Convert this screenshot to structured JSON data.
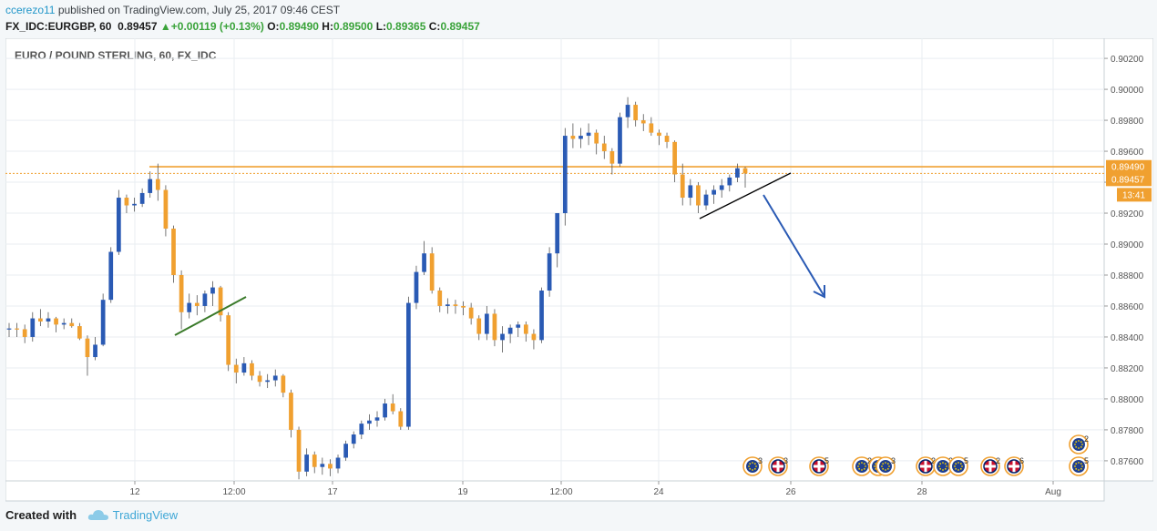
{
  "header": {
    "user": "ccerezo11",
    "published": "published on TradingView.com, July 25, 2017 09:46 CEST",
    "symbol_interval": "FX_IDC:EURGBP, 60",
    "last": "0.89457",
    "change": "+0.00119 (+0.13%)",
    "o_label": "O:",
    "o_value": "0.89490",
    "h_label": "H:",
    "h_value": "0.89500",
    "l_label": "L:",
    "l_value": "0.89365",
    "c_label": "C:",
    "c_value": "0.89457"
  },
  "footer": {
    "created_with": "Created with",
    "brand": "TradingView"
  },
  "colors": {
    "up": "#2a5ab4",
    "down": "#f0a030",
    "price_line": "#f0a030",
    "trend_green": "#3a7a2a",
    "arrow": "#2a5ab4",
    "axis": "#555555",
    "grid": "#e9eef2"
  },
  "chart_data": {
    "type": "candlestick",
    "title": "EURO / POUND STERLING, 60, FX_IDC",
    "ylim": [
      0.8747,
      0.9033
    ],
    "y_ticks": [
      "0.87600",
      "0.87800",
      "0.88000",
      "0.88200",
      "0.88400",
      "0.88600",
      "0.88800",
      "0.89000",
      "0.89200",
      "0.89400",
      "0.89600",
      "0.89800",
      "0.90000",
      "0.90200"
    ],
    "x_ticks": [
      "12",
      "12:00",
      "17",
      "19",
      "12:00",
      "24",
      "26",
      "28",
      "Aug"
    ],
    "price_labels": [
      {
        "value": 0.8949,
        "text": "0.89490",
        "color": "#f0a030"
      },
      {
        "value": 0.89457,
        "text": "0.89457",
        "color": "#f0a030"
      }
    ],
    "countdown": "13:41",
    "horizontal_line": 0.895,
    "event_labels": [
      "3",
      "3",
      "5",
      "2",
      "2",
      "3",
      "2",
      "2",
      "5",
      "2",
      "6",
      "5",
      "2"
    ],
    "series": [
      {
        "name": "EURGBP",
        "ohlc": [
          [
            0.88455,
            0.8849,
            0.884,
            0.88455
          ],
          [
            0.88455,
            0.8849,
            0.884,
            0.8845
          ],
          [
            0.8845,
            0.8848,
            0.8836,
            0.884
          ],
          [
            0.884,
            0.8856,
            0.8837,
            0.8852
          ],
          [
            0.8852,
            0.8858,
            0.8847,
            0.885
          ],
          [
            0.885,
            0.8856,
            0.8846,
            0.8852
          ],
          [
            0.8852,
            0.8853,
            0.8843,
            0.8848
          ],
          [
            0.8848,
            0.8852,
            0.8845,
            0.8849
          ],
          [
            0.8849,
            0.8852,
            0.8846,
            0.8847
          ],
          [
            0.8847,
            0.8849,
            0.8838,
            0.8839
          ],
          [
            0.8839,
            0.8841,
            0.8815,
            0.8827
          ],
          [
            0.8827,
            0.884,
            0.8825,
            0.8835
          ],
          [
            0.8835,
            0.8868,
            0.8834,
            0.8864
          ],
          [
            0.8864,
            0.8898,
            0.8862,
            0.8895
          ],
          [
            0.8895,
            0.8935,
            0.8893,
            0.893
          ],
          [
            0.893,
            0.8932,
            0.892,
            0.8925
          ],
          [
            0.8925,
            0.893,
            0.8921,
            0.8926
          ],
          [
            0.8926,
            0.8936,
            0.8924,
            0.8933
          ],
          [
            0.8933,
            0.8947,
            0.893,
            0.8942
          ],
          [
            0.8942,
            0.8952,
            0.8928,
            0.8935
          ],
          [
            0.8935,
            0.8938,
            0.8905,
            0.891
          ],
          [
            0.891,
            0.8912,
            0.8875,
            0.888
          ],
          [
            0.888,
            0.8883,
            0.8845,
            0.8856
          ],
          [
            0.8856,
            0.8868,
            0.8852,
            0.8862
          ],
          [
            0.8862,
            0.8867,
            0.8854,
            0.886
          ],
          [
            0.886,
            0.887,
            0.8856,
            0.8868
          ],
          [
            0.8868,
            0.8876,
            0.886,
            0.8872
          ],
          [
            0.8872,
            0.8873,
            0.885,
            0.8854
          ],
          [
            0.8854,
            0.8856,
            0.8818,
            0.8822
          ],
          [
            0.8822,
            0.8826,
            0.881,
            0.8817
          ],
          [
            0.8817,
            0.8827,
            0.8815,
            0.8823
          ],
          [
            0.8823,
            0.8825,
            0.8812,
            0.8815
          ],
          [
            0.8815,
            0.8818,
            0.8808,
            0.8811
          ],
          [
            0.8811,
            0.8816,
            0.8807,
            0.8812
          ],
          [
            0.8812,
            0.8819,
            0.8808,
            0.8815
          ],
          [
            0.8815,
            0.8816,
            0.8801,
            0.8804
          ],
          [
            0.8804,
            0.8806,
            0.8775,
            0.878
          ],
          [
            0.878,
            0.8782,
            0.8748,
            0.8753
          ],
          [
            0.8753,
            0.8768,
            0.875,
            0.8764
          ],
          [
            0.8764,
            0.8766,
            0.8752,
            0.8756
          ],
          [
            0.8756,
            0.8762,
            0.8751,
            0.8758
          ],
          [
            0.8758,
            0.8761,
            0.875,
            0.8755
          ],
          [
            0.8755,
            0.8764,
            0.8752,
            0.8762
          ],
          [
            0.8762,
            0.8773,
            0.876,
            0.8771
          ],
          [
            0.8771,
            0.8779,
            0.8768,
            0.8777
          ],
          [
            0.8777,
            0.8786,
            0.8774,
            0.8784
          ],
          [
            0.8784,
            0.879,
            0.878,
            0.8786
          ],
          [
            0.8786,
            0.8792,
            0.8782,
            0.8788
          ],
          [
            0.8788,
            0.88,
            0.8786,
            0.8797
          ],
          [
            0.8797,
            0.8803,
            0.879,
            0.8792
          ],
          [
            0.8792,
            0.8794,
            0.878,
            0.8782
          ],
          [
            0.8782,
            0.8866,
            0.878,
            0.8862
          ],
          [
            0.8862,
            0.8886,
            0.8858,
            0.8882
          ],
          [
            0.8882,
            0.8902,
            0.888,
            0.8894
          ],
          [
            0.8894,
            0.8898,
            0.8868,
            0.887
          ],
          [
            0.887,
            0.8872,
            0.8856,
            0.886
          ],
          [
            0.886,
            0.8865,
            0.8855,
            0.8861
          ],
          [
            0.8861,
            0.8864,
            0.8855,
            0.886
          ],
          [
            0.886,
            0.8863,
            0.8854,
            0.8859
          ],
          [
            0.8859,
            0.8862,
            0.8848,
            0.8852
          ],
          [
            0.8852,
            0.8854,
            0.8838,
            0.8842
          ],
          [
            0.8842,
            0.886,
            0.8838,
            0.8855
          ],
          [
            0.8855,
            0.8858,
            0.8834,
            0.8838
          ],
          [
            0.8838,
            0.8847,
            0.883,
            0.8842
          ],
          [
            0.8842,
            0.8848,
            0.8836,
            0.8846
          ],
          [
            0.8846,
            0.885,
            0.884,
            0.8848
          ],
          [
            0.8848,
            0.885,
            0.8837,
            0.8842
          ],
          [
            0.8842,
            0.8845,
            0.8832,
            0.8838
          ],
          [
            0.8838,
            0.8872,
            0.8836,
            0.887
          ],
          [
            0.887,
            0.8898,
            0.8866,
            0.8894
          ],
          [
            0.8894,
            0.892,
            0.8885,
            0.892
          ],
          [
            0.892,
            0.8975,
            0.8912,
            0.897
          ],
          [
            0.897,
            0.8978,
            0.8962,
            0.8968
          ],
          [
            0.8968,
            0.8975,
            0.8962,
            0.897
          ],
          [
            0.897,
            0.8978,
            0.8964,
            0.8972
          ],
          [
            0.8972,
            0.8974,
            0.8958,
            0.8965
          ],
          [
            0.8965,
            0.897,
            0.8955,
            0.896
          ],
          [
            0.896,
            0.8962,
            0.8945,
            0.8952
          ],
          [
            0.8952,
            0.8985,
            0.895,
            0.8982
          ],
          [
            0.8982,
            0.8995,
            0.8975,
            0.899
          ],
          [
            0.899,
            0.8992,
            0.8976,
            0.898
          ],
          [
            0.898,
            0.8984,
            0.8973,
            0.8978
          ],
          [
            0.8978,
            0.8982,
            0.897,
            0.8972
          ],
          [
            0.8972,
            0.8974,
            0.8964,
            0.897
          ],
          [
            0.897,
            0.8972,
            0.8962,
            0.8966
          ],
          [
            0.8966,
            0.8967,
            0.894,
            0.8945
          ],
          [
            0.8945,
            0.8952,
            0.8925,
            0.893
          ],
          [
            0.893,
            0.8942,
            0.8925,
            0.8938
          ],
          [
            0.8938,
            0.894,
            0.892,
            0.8925
          ],
          [
            0.8925,
            0.8935,
            0.8922,
            0.8932
          ],
          [
            0.8932,
            0.8938,
            0.8926,
            0.8935
          ],
          [
            0.8935,
            0.8942,
            0.893,
            0.8938
          ],
          [
            0.8938,
            0.8945,
            0.8934,
            0.8943
          ],
          [
            0.8943,
            0.8952,
            0.894,
            0.8949
          ],
          [
            0.8949,
            0.895,
            0.89365,
            0.89457
          ]
        ]
      }
    ]
  }
}
